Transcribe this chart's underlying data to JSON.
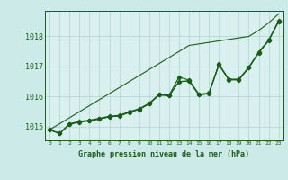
{
  "background_color": "#cceae7",
  "plot_bg_color": "#daf0ee",
  "grid_color": "#aad4d0",
  "line_color": "#1a5c1a",
  "xlabel": "Graphe pression niveau de la mer (hPa)",
  "xlim": [
    -0.5,
    23.5
  ],
  "ylim": [
    1014.55,
    1018.85
  ],
  "yticks": [
    1015,
    1016,
    1017,
    1018
  ],
  "xticks": [
    0,
    1,
    2,
    3,
    4,
    5,
    6,
    7,
    8,
    9,
    10,
    11,
    12,
    13,
    14,
    15,
    16,
    17,
    18,
    19,
    20,
    21,
    22,
    23
  ],
  "line_straight": [
    1014.9,
    1015.1,
    1015.3,
    1015.5,
    1015.7,
    1015.9,
    1016.1,
    1016.3,
    1016.5,
    1016.7,
    1016.9,
    1017.1,
    1017.3,
    1017.5,
    1017.7,
    1017.75,
    1017.8,
    1017.85,
    1017.9,
    1017.95,
    1018.0,
    1018.2,
    1018.45,
    1018.75
  ],
  "line_main": [
    1014.9,
    1014.78,
    1015.1,
    1015.18,
    1015.22,
    1015.28,
    1015.35,
    1015.38,
    1015.5,
    1015.6,
    1015.78,
    1016.08,
    1016.05,
    1016.65,
    1016.55,
    1016.08,
    1016.12,
    1017.08,
    1016.58,
    1016.58,
    1016.98,
    1017.48,
    1017.88,
    1018.52
  ],
  "line_mid1": [
    1014.9,
    1014.78,
    1015.08,
    1015.16,
    1015.2,
    1015.26,
    1015.33,
    1015.36,
    1015.48,
    1015.58,
    1015.76,
    1016.06,
    1016.03,
    1016.5,
    1016.52,
    1016.06,
    1016.1,
    1017.06,
    1016.56,
    1016.56,
    1016.96,
    1017.46,
    1017.86,
    1018.5
  ],
  "line_mid2": [
    1014.9,
    1014.78,
    1015.08,
    1015.16,
    1015.2,
    1015.26,
    1015.33,
    1015.36,
    1015.48,
    1015.58,
    1015.76,
    1016.06,
    1016.03,
    1016.5,
    1016.52,
    1016.06,
    1016.1,
    1017.06,
    1016.56,
    1016.56,
    1016.96,
    1017.46,
    1017.86,
    1018.5
  ]
}
